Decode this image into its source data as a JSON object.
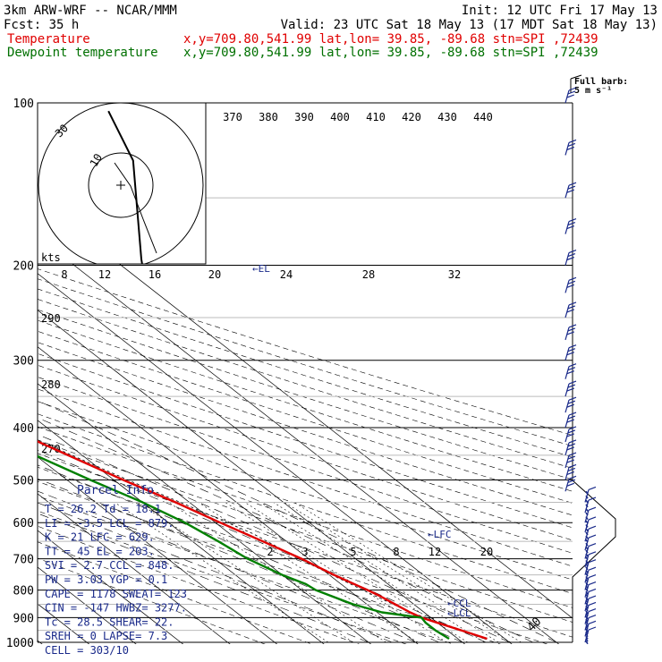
{
  "header": {
    "line1_left": "3km ARW-WRF -- NCAR/MMM",
    "line1_right": "Init: 12 UTC Fri 17 May 13",
    "line2_left": "Fcst:    35 h",
    "line2_right": "Valid: 23 UTC Sat 18 May 13 (17 MDT Sat 18 May 13)",
    "line3_label": "Temperature",
    "line3_info": "x,y=709.80,541.99   lat,lon= 39.85, -89.68  stn=SPI ,72439",
    "line4_label": "Dewpoint temperature",
    "line4_info": "x,y=709.80,541.99   lat,lon= 39.85, -89.68  stn=SPI ,72439"
  },
  "colors": {
    "temperature": "#e00000",
    "dewpoint": "#008000",
    "barbs": "#1a2a8a"
  },
  "wind_key": {
    "line1": "Full barb:",
    "line2": "5 m s⁻¹"
  },
  "hodograph": {
    "units": "kts",
    "ring_labels": [
      "10",
      "30"
    ]
  },
  "parcel_info": {
    "title": "Parcel Info",
    "rows": [
      "T  =   26.2  Td =  18.1",
      "LI =   -3.5  LCL =  879.",
      "K  =    21  LFC =  629.",
      "TT =    45  EL  =  203.",
      "SVI =   2.7  CCL =  848.",
      "PW =  3.03  YGP =   0.1",
      "CAPE =  1178  SWEAT=  123",
      "CIN =  -147  HWBZ= 3277.",
      "Tc =  28.5  SHEAR=  22.",
      "SREH =    0  LAPSE=  7.3",
      "CELL = 303/10"
    ]
  },
  "level_labels": {
    "el": "←EL",
    "lfc": "←LFC",
    "ccl": "←CCL",
    "lcl": "←LCL"
  },
  "chart_data": {
    "type": "line",
    "title": "",
    "y_axis": "pressure (hPa), log scale",
    "pressure_ticks": [
      100,
      200,
      300,
      400,
      500,
      600,
      700,
      800,
      900,
      1000
    ],
    "temperature_ticks": [
      -80,
      -70,
      -60,
      -50,
      -40,
      -30,
      -20,
      -10,
      0,
      10,
      20,
      30,
      40
    ],
    "theta_labels": [
      370,
      380,
      390,
      400,
      410,
      420,
      430,
      440
    ],
    "dry_adiabat_labels": [
      270,
      280,
      290
    ],
    "mixing_ratio_labels_upper": [
      "8",
      "12",
      "16",
      "20",
      "24",
      "28",
      "32"
    ],
    "mixing_ratio_labels_lower": [
      "2",
      "3",
      "5",
      "8",
      "12",
      "20"
    ],
    "series": [
      {
        "name": "Temperature",
        "points": [
          [
            985,
            26.2
          ],
          [
            950,
            23
          ],
          [
            920,
            20
          ],
          [
            900,
            18
          ],
          [
            880,
            17
          ],
          [
            850,
            16
          ],
          [
            820,
            15
          ],
          [
            800,
            14
          ],
          [
            750,
            11
          ],
          [
            700,
            8.5
          ],
          [
            650,
            5
          ],
          [
            600,
            1
          ],
          [
            550,
            -3
          ],
          [
            500,
            -8
          ],
          [
            450,
            -13
          ],
          [
            400,
            -18.5
          ],
          [
            350,
            -25
          ],
          [
            300,
            -32
          ],
          [
            270,
            -38
          ],
          [
            250,
            -42
          ],
          [
            225,
            -47
          ],
          [
            200,
            -52
          ],
          [
            175,
            -56
          ],
          [
            160,
            -56
          ],
          [
            145,
            -54
          ],
          [
            125,
            -50
          ],
          [
            115,
            -45
          ],
          [
            105,
            -40
          ],
          [
            100,
            -38
          ]
        ]
      },
      {
        "name": "Dewpoint temperature",
        "points": [
          [
            985,
            18.1
          ],
          [
            950,
            17.5
          ],
          [
            920,
            17.5
          ],
          [
            900,
            18
          ],
          [
            880,
            11
          ],
          [
            850,
            7
          ],
          [
            800,
            3
          ],
          [
            780,
            2.5
          ],
          [
            750,
            0
          ],
          [
            700,
            -3
          ],
          [
            650,
            -4.5
          ],
          [
            600,
            -6.5
          ],
          [
            550,
            -10
          ],
          [
            500,
            -15
          ],
          [
            450,
            -20
          ],
          [
            400,
            -28
          ],
          [
            350,
            -40
          ],
          [
            300,
            -47
          ],
          [
            270,
            -53
          ],
          [
            250,
            -60
          ],
          [
            220,
            -63
          ],
          [
            200,
            -67
          ],
          [
            170,
            -72
          ],
          [
            140,
            -78
          ],
          [
            120,
            -80
          ],
          [
            100,
            -82
          ]
        ]
      }
    ],
    "parcel_path": [
      [
        985,
        26.2
      ],
      [
        879,
        17
      ],
      [
        800,
        13
      ],
      [
        700,
        8
      ],
      [
        629,
        5
      ],
      [
        550,
        -2
      ],
      [
        500,
        -7
      ],
      [
        400,
        -18
      ],
      [
        300,
        -35
      ],
      [
        203,
        -60
      ]
    ],
    "hodograph_trace": [
      [
        -3,
        -9
      ],
      [
        0,
        -6
      ],
      [
        3,
        -3
      ],
      [
        4,
        3
      ],
      [
        5,
        9
      ],
      [
        7,
        15
      ]
    ],
    "wind_barbs": [
      {
        "p": 100,
        "speed": "2 full"
      },
      {
        "p": 125,
        "speed": "4 full"
      },
      {
        "p": 150,
        "speed": "4 full"
      },
      {
        "p": 200,
        "speed": "4 full"
      },
      {
        "p": 250,
        "speed": "3 full"
      },
      {
        "p": 300,
        "speed": "3 full"
      },
      {
        "p": 400,
        "speed": "3 full"
      },
      {
        "p": 500,
        "speed": "3 full"
      },
      {
        "p": 600,
        "speed": "2 full"
      },
      {
        "p": 700,
        "speed": "1 full"
      },
      {
        "p": 800,
        "speed": "1 full"
      },
      {
        "p": 900,
        "speed": "1 full"
      },
      {
        "p": 1000,
        "speed": "1 full"
      }
    ]
  }
}
